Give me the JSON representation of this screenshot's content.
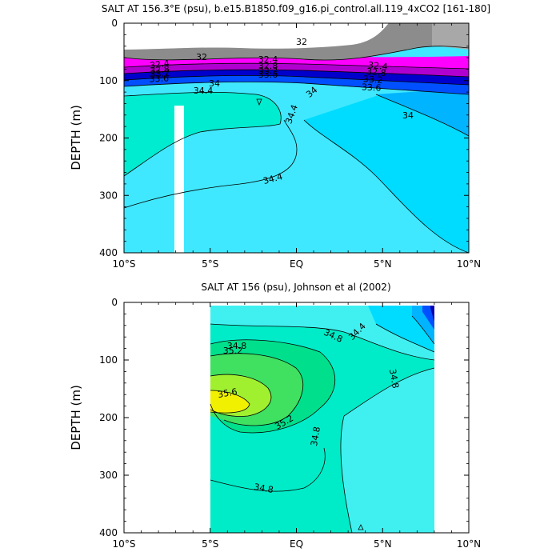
{
  "chart_data": [
    {
      "type": "contour",
      "title": "SALT AT 156.3°E (psu), b.e15.B1850.f09_g16.pi_control.all.119_4xCO2 [161-180]",
      "ylabel": "DEPTH (m)",
      "xlabel": "",
      "x_ticks": [
        "10°S",
        "5°S",
        "EQ",
        "5°N",
        "10°N"
      ],
      "y_ticks": [
        "0",
        "100",
        "200",
        "300",
        "400"
      ],
      "xlim": [
        -10,
        10
      ],
      "ylim": [
        400,
        0
      ],
      "contour_labels": [
        "32",
        "32",
        "32.4",
        "32.8",
        "33.2",
        "33.6",
        "32.4",
        "32.8",
        "33.2",
        "33.6",
        "32.4",
        "32.8",
        "33.2",
        "33.6",
        "34",
        "34.4",
        "34",
        "34.4",
        "34",
        "34.4"
      ],
      "colors": {
        "gray_dark": "#666666",
        "gray_mid": "#8c8c8c",
        "gray_light": "#a8a8a8",
        "magenta": "#ff00ff",
        "purple": "#b000d0",
        "blue_dark": "#0000cc",
        "blue": "#0050ff",
        "sky": "#00a0ff",
        "cyan": "#00dcff",
        "cyan_light": "#40e8ff",
        "turquoise": "#00ecd0",
        "mask": "#ffffff"
      }
    },
    {
      "type": "contour",
      "title": "SALT AT 156 (psu), Johnson et al (2002)",
      "ylabel": "DEPTH (m)",
      "xlabel": "",
      "x_ticks": [
        "10°S",
        "5°S",
        "EQ",
        "5°N",
        "10°N"
      ],
      "y_ticks": [
        "0",
        "100",
        "200",
        "300",
        "400"
      ],
      "xlim": [
        -10,
        10
      ],
      "ylim": [
        400,
        0
      ],
      "data_xrange": [
        -5,
        8
      ],
      "contour_labels": [
        "34.8",
        "34.8",
        "34.4",
        "34.8",
        "35.2",
        "35.6",
        "35.2",
        "34.8",
        "34.8"
      ],
      "colors": {
        "yellow": "#f0f000",
        "yellow_green": "#a0f030",
        "green": "#40e060",
        "green_light": "#00e08c",
        "turquoise": "#00ecc8",
        "cyan_light": "#40f0f0",
        "cyan": "#00dcff",
        "sky": "#00b4ff",
        "blue": "#0050ff",
        "navy": "#0000b0",
        "background": "#ffffff"
      }
    }
  ]
}
